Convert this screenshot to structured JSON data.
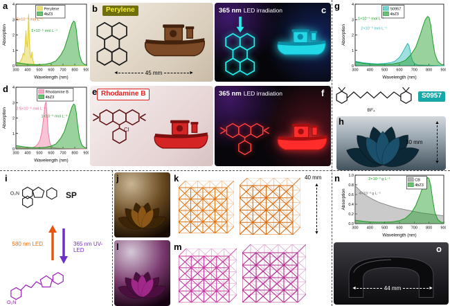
{
  "letters": {
    "a": "a",
    "b": "b",
    "c": "c",
    "d": "d",
    "e": "e",
    "f": "f",
    "g": "g",
    "h": "h",
    "i": "i",
    "j": "j",
    "k": "k",
    "l": "l",
    "m": "m",
    "n": "n",
    "o": "o"
  },
  "icons": {
    "tri_up": "▲",
    "tri_down": "▼",
    "tri_left": "◄",
    "tri_right": "►"
  },
  "panel_b": {
    "dye_label": "Perylene",
    "scale": "45 mm"
  },
  "panel_c": {
    "nm": "365 nm",
    "rest": "LED irradiation"
  },
  "panel_e": {
    "dye_label": "Rhodamine B",
    "cl": "Cl"
  },
  "panel_f": {
    "nm": "365 nm",
    "rest": "LED irradiation"
  },
  "panel_g2": {
    "dye_label": "S0957",
    "bf4": "BF₄"
  },
  "panel_h": {
    "scale": "30 mm"
  },
  "panel_i": {
    "sp": "SP",
    "no2_top": "O₂N",
    "no2_bottom": "O₂N",
    "led_back": "580 nm LED",
    "led_forward": "365 nm UV-LED"
  },
  "panel_k": {
    "scale": "40 mm"
  },
  "panel_o": {
    "scale": "44 mm"
  },
  "chart_data": [
    {
      "panel": "a",
      "type": "line",
      "title": "",
      "xlabel": "Wavelength (nm)",
      "ylabel": "Absorption",
      "xlim": [
        300,
        900
      ],
      "ylim": [
        0,
        4
      ],
      "xticks": [
        300,
        400,
        500,
        600,
        700,
        800,
        900
      ],
      "yticks": [
        0,
        1,
        2,
        3,
        4
      ],
      "legend_x": 0.28,
      "series": [
        {
          "name": "Perylene",
          "color": "#e0cc2e",
          "x": [
            300,
            330,
            350,
            362,
            370,
            378,
            385,
            390,
            396,
            402,
            408,
            414,
            420,
            428,
            436,
            444,
            452,
            460,
            480,
            520,
            900
          ],
          "y": [
            0.1,
            0.2,
            0.45,
            0.8,
            0.7,
            1.3,
            2.3,
            1.6,
            1.2,
            1.9,
            3.35,
            1.8,
            0.8,
            0.5,
            0.9,
            0.4,
            0.15,
            0.08,
            0.05,
            0.02,
            0
          ]
        },
        {
          "name": "4bZ3",
          "color": "#1e9c28",
          "x": [
            300,
            350,
            400,
            450,
            500,
            550,
            600,
            640,
            680,
            710,
            740,
            760,
            775,
            790,
            800,
            812,
            825,
            840,
            860,
            880,
            900
          ],
          "y": [
            0.22,
            0.15,
            0.1,
            0.08,
            0.08,
            0.1,
            0.18,
            0.32,
            0.68,
            1.1,
            1.8,
            2.35,
            2.7,
            2.9,
            2.85,
            2.4,
            1.5,
            0.7,
            0.25,
            0.1,
            0.04
          ]
        }
      ],
      "annotations": [
        {
          "text": "5×10⁻⁵ mol L⁻¹",
          "color": "#e06a10",
          "x": 305,
          "y": 2.95
        },
        {
          "text": "1×10⁻⁵ mol L⁻¹",
          "color": "#1e9c28",
          "x": 430,
          "y": 2.2
        }
      ]
    },
    {
      "panel": "d",
      "type": "line",
      "title": "",
      "xlabel": "Wavelength (nm)",
      "ylabel": "Absorption",
      "xlim": [
        300,
        900
      ],
      "ylim": [
        0,
        4
      ],
      "xticks": [
        300,
        400,
        500,
        600,
        700,
        800,
        900
      ],
      "yticks": [
        0,
        1,
        2,
        3,
        4
      ],
      "legend_x": 0.3,
      "series": [
        {
          "name": "Rhodamine B",
          "color": "#f07aa0",
          "x": [
            300,
            350,
            400,
            440,
            470,
            490,
            505,
            520,
            535,
            548,
            556,
            565,
            575,
            590,
            610,
            640,
            700,
            900
          ],
          "y": [
            0.12,
            0.06,
            0.05,
            0.08,
            0.18,
            0.35,
            0.6,
            1.1,
            2.0,
            2.9,
            3.05,
            2.2,
            1.0,
            0.35,
            0.1,
            0.05,
            0.02,
            0
          ]
        },
        {
          "name": "4bZ3",
          "color": "#1e9c28",
          "x": [
            300,
            350,
            400,
            450,
            500,
            550,
            600,
            640,
            680,
            710,
            740,
            760,
            775,
            790,
            800,
            812,
            825,
            840,
            860,
            880,
            900
          ],
          "y": [
            0.22,
            0.15,
            0.1,
            0.08,
            0.08,
            0.1,
            0.18,
            0.32,
            0.68,
            1.1,
            1.8,
            2.35,
            2.7,
            2.9,
            2.85,
            2.4,
            1.5,
            0.7,
            0.25,
            0.1,
            0.04
          ]
        }
      ],
      "annotations": [
        {
          "text": "2.5×10⁻⁶ mol L⁻¹",
          "color": "#e8609a",
          "x": 302,
          "y": 2.55
        },
        {
          "text": "1×10⁻⁵ mol L⁻¹",
          "color": "#1e9c28",
          "x": 515,
          "y": 2.05
        }
      ]
    },
    {
      "panel": "g",
      "type": "line",
      "title": "",
      "xlabel": "Wavelength (nm)",
      "ylabel": "Absorption",
      "xlim": [
        300,
        900
      ],
      "ylim": [
        0,
        4
      ],
      "xticks": [
        300,
        400,
        500,
        600,
        700,
        800,
        900
      ],
      "yticks": [
        0,
        1,
        2,
        3,
        4
      ],
      "legend_x": 0.3,
      "series": [
        {
          "name": "S0957",
          "color": "#2ab8b8",
          "x": [
            300,
            350,
            400,
            450,
            500,
            540,
            570,
            600,
            620,
            640,
            655,
            665,
            672,
            680,
            690,
            705,
            725,
            900
          ],
          "y": [
            0.3,
            0.2,
            0.15,
            0.12,
            0.15,
            0.2,
            0.3,
            0.55,
            0.85,
            1.2,
            1.45,
            1.3,
            1.0,
            0.6,
            0.3,
            0.12,
            0.05,
            0
          ]
        },
        {
          "name": "4bZ3",
          "color": "#1e9c28",
          "x": [
            300,
            350,
            400,
            450,
            500,
            550,
            600,
            640,
            680,
            710,
            740,
            760,
            775,
            790,
            800,
            812,
            825,
            840,
            860,
            880,
            900
          ],
          "y": [
            0.25,
            0.17,
            0.11,
            0.09,
            0.09,
            0.11,
            0.2,
            0.35,
            0.75,
            1.2,
            2.0,
            2.6,
            3.0,
            3.2,
            3.15,
            2.65,
            1.65,
            0.77,
            0.28,
            0.11,
            0.04
          ]
        }
      ],
      "annotations": [
        {
          "text": "1×10⁻⁵ mol L⁻¹",
          "color": "#1e9c28",
          "x": 318,
          "y": 3.0
        },
        {
          "text": "2×10⁻⁵ mol L⁻¹",
          "color": "#2ab8b8",
          "x": 338,
          "y": 2.35
        }
      ]
    },
    {
      "panel": "n",
      "type": "line",
      "title": "",
      "xlabel": "Wavelength (nm)",
      "ylabel": "Absorption",
      "xlim": [
        300,
        900
      ],
      "ylim": [
        0,
        1
      ],
      "xticks": [
        300,
        400,
        500,
        600,
        700,
        800,
        900
      ],
      "yticks": [
        "0.0",
        "0.2",
        "0.4",
        "0.6",
        "0.8",
        "1.0"
      ],
      "legend_x": 0.58,
      "series": [
        {
          "name": "CB",
          "color": "#8a8a8a",
          "x": [
            300,
            340,
            380,
            420,
            460,
            500,
            550,
            600,
            650,
            700,
            750,
            800,
            850,
            900
          ],
          "y": [
            0.78,
            0.66,
            0.57,
            0.5,
            0.44,
            0.4,
            0.35,
            0.31,
            0.28,
            0.25,
            0.22,
            0.2,
            0.18,
            0.16
          ]
        },
        {
          "name": "4bZ3",
          "color": "#1e9c28",
          "x": [
            300,
            350,
            400,
            450,
            500,
            550,
            600,
            640,
            680,
            710,
            740,
            760,
            775,
            790,
            800,
            812,
            825,
            840,
            860,
            880,
            900
          ],
          "y": [
            0.07,
            0.05,
            0.035,
            0.03,
            0.03,
            0.035,
            0.06,
            0.11,
            0.22,
            0.37,
            0.6,
            0.78,
            0.88,
            0.95,
            0.93,
            0.78,
            0.49,
            0.23,
            0.08,
            0.035,
            0.015
          ]
        }
      ],
      "annotations": [
        {
          "text": "2×10⁻³ g L⁻¹",
          "color": "#1e9c28",
          "x": 390,
          "y": 0.9
        },
        {
          "text": "4×10⁻³ g L⁻¹",
          "color": "#666666",
          "x": 325,
          "y": 0.6
        }
      ]
    }
  ]
}
